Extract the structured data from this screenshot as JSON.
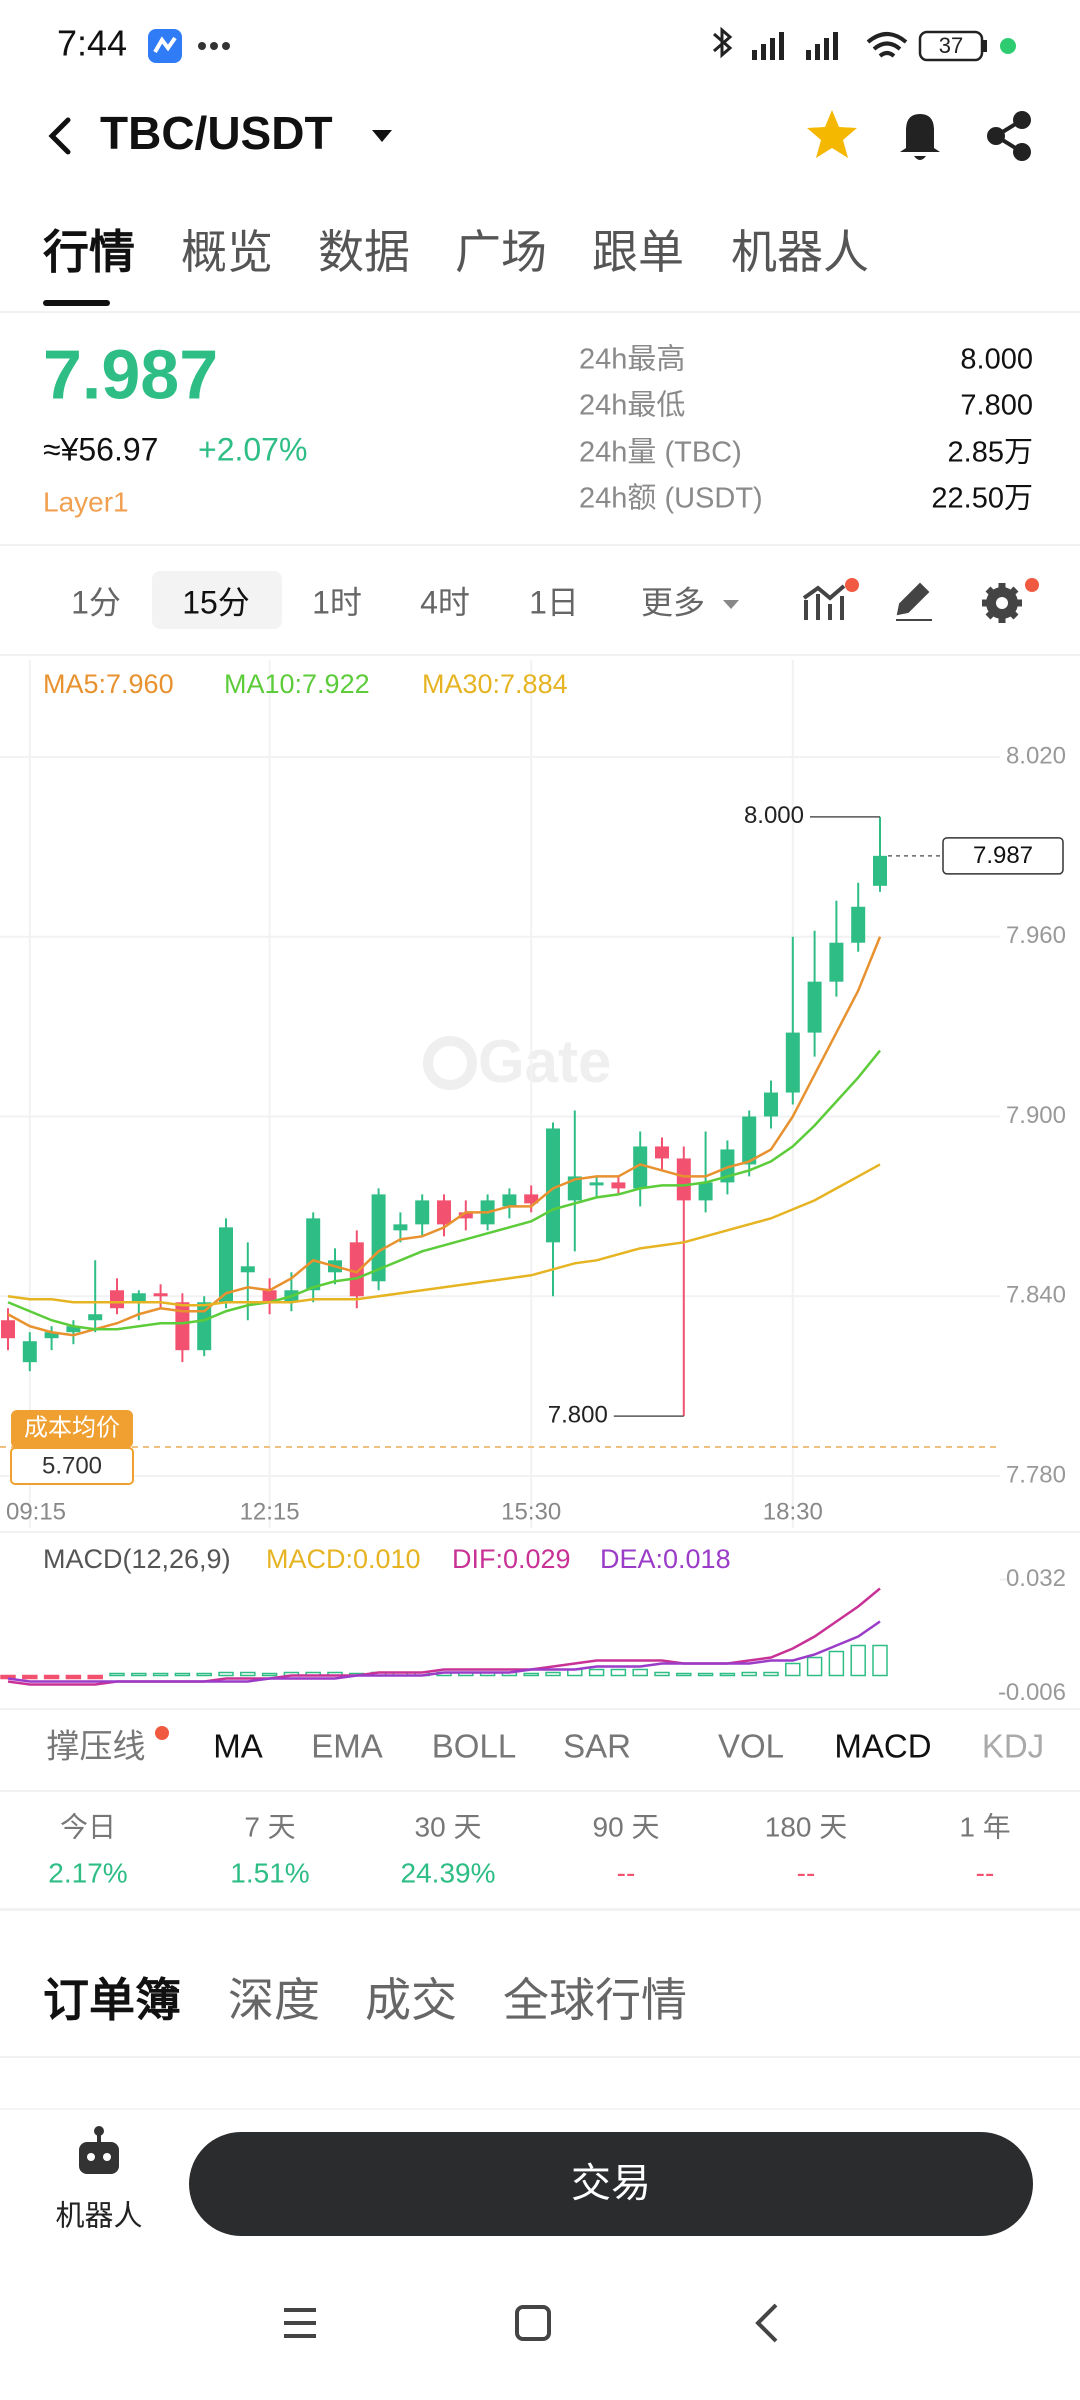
{
  "status_bar": {
    "time": "7:44",
    "battery": "37"
  },
  "header": {
    "pair": "TBC/USDT"
  },
  "tabs": [
    "行情",
    "概览",
    "数据",
    "广场",
    "跟单",
    "机器人"
  ],
  "ticker": {
    "price": "7.987",
    "cny": "≈¥56.97",
    "change": "+2.07%",
    "tag": "Layer1",
    "stats": [
      {
        "label": "24h最高",
        "value": "8.000"
      },
      {
        "label": "24h最低",
        "value": "7.800"
      },
      {
        "label": "24h量 (TBC)",
        "value": "2.85万"
      },
      {
        "label": "24h额 (USDT)",
        "value": "22.50万"
      }
    ]
  },
  "intervals": [
    "1分",
    "15分",
    "1时",
    "4时",
    "1日",
    "更多"
  ],
  "chart_data": [
    {
      "type": "candlestick",
      "categories": [
        null,
        "09:15",
        null,
        null,
        null,
        null,
        null,
        null,
        null,
        null,
        null,
        null,
        "12:15",
        null,
        null,
        null,
        null,
        null,
        null,
        null,
        null,
        null,
        null,
        null,
        "15:30",
        null,
        null,
        null,
        null,
        null,
        null,
        null,
        null,
        null,
        null,
        null,
        "18:30",
        null,
        null,
        null,
        null
      ],
      "open": [
        7.832,
        7.818,
        7.826,
        7.828,
        7.832,
        7.842,
        7.838,
        7.841,
        7.838,
        7.822,
        7.838,
        7.848,
        7.842,
        7.838,
        7.842,
        7.848,
        7.858,
        7.845,
        7.862,
        7.864,
        7.872,
        7.868,
        7.864,
        7.87,
        7.874,
        7.858,
        7.872,
        7.877,
        7.878,
        7.876,
        7.89,
        7.886,
        7.872,
        7.878,
        7.884,
        7.9,
        7.908,
        7.928,
        7.945,
        7.958,
        7.977
      ],
      "high": [
        7.836,
        7.828,
        7.83,
        7.832,
        7.852,
        7.846,
        7.842,
        7.844,
        7.841,
        7.84,
        7.866,
        7.858,
        7.846,
        7.848,
        7.868,
        7.856,
        7.862,
        7.876,
        7.868,
        7.874,
        7.874,
        7.872,
        7.874,
        7.876,
        7.877,
        7.898,
        7.902,
        7.88,
        7.88,
        7.895,
        7.893,
        7.89,
        7.895,
        7.892,
        7.902,
        7.912,
        7.96,
        7.962,
        7.972,
        7.978,
        8.0
      ],
      "low": [
        7.822,
        7.815,
        7.822,
        7.824,
        7.828,
        7.834,
        7.832,
        7.836,
        7.818,
        7.82,
        7.836,
        7.832,
        7.834,
        7.835,
        7.838,
        7.844,
        7.836,
        7.842,
        7.858,
        7.86,
        7.86,
        7.862,
        7.862,
        7.866,
        7.868,
        7.84,
        7.855,
        7.873,
        7.874,
        7.87,
        7.882,
        7.8,
        7.868,
        7.874,
        7.88,
        7.896,
        7.904,
        7.92,
        7.94,
        7.955,
        7.975
      ],
      "close": [
        7.826,
        7.825,
        7.828,
        7.83,
        7.834,
        7.836,
        7.841,
        7.84,
        7.822,
        7.838,
        7.863,
        7.85,
        7.838,
        7.842,
        7.866,
        7.852,
        7.84,
        7.874,
        7.864,
        7.872,
        7.864,
        7.866,
        7.872,
        7.874,
        7.871,
        7.896,
        7.88,
        7.878,
        7.876,
        7.89,
        7.886,
        7.872,
        7.878,
        7.889,
        7.9,
        7.908,
        7.928,
        7.945,
        7.958,
        7.97,
        7.987
      ],
      "up_color": "#2ebd85",
      "down_color": "#f2516f",
      "series": [
        {
          "name": "MA5:7.960",
          "color": "#e8912f",
          "values": [
            7.834,
            7.83,
            7.828,
            7.827,
            7.829,
            7.831,
            7.834,
            7.836,
            7.835,
            7.835,
            7.841,
            7.843,
            7.842,
            7.846,
            7.852,
            7.85,
            7.848,
            7.855,
            7.859,
            7.86,
            7.863,
            7.868,
            7.868,
            7.87,
            7.87,
            7.876,
            7.879,
            7.88,
            7.88,
            7.884,
            7.882,
            7.88,
            7.88,
            7.883,
            7.885,
            7.889,
            7.9,
            7.914,
            7.928,
            7.942,
            7.96
          ]
        },
        {
          "name": "MA10:7.922",
          "color": "#5ccc3a",
          "values": [
            7.838,
            7.835,
            7.832,
            7.83,
            7.829,
            7.829,
            7.83,
            7.831,
            7.831,
            7.832,
            7.835,
            7.837,
            7.838,
            7.84,
            7.843,
            7.845,
            7.846,
            7.849,
            7.852,
            7.855,
            7.857,
            7.859,
            7.861,
            7.863,
            7.865,
            7.869,
            7.871,
            7.873,
            7.874,
            7.876,
            7.877,
            7.877,
            7.878,
            7.88,
            7.882,
            7.885,
            7.89,
            7.897,
            7.905,
            7.913,
            7.922
          ]
        },
        {
          "name": "MA30:7.884",
          "color": "#e6b422",
          "values": [
            7.84,
            7.839,
            7.839,
            7.838,
            7.838,
            7.838,
            7.838,
            7.838,
            7.837,
            7.837,
            7.838,
            7.838,
            7.838,
            7.838,
            7.839,
            7.839,
            7.839,
            7.84,
            7.841,
            7.842,
            7.843,
            7.844,
            7.845,
            7.846,
            7.847,
            7.849,
            7.851,
            7.852,
            7.854,
            7.856,
            7.857,
            7.858,
            7.86,
            7.862,
            7.864,
            7.866,
            7.869,
            7.872,
            7.876,
            7.88,
            7.884
          ]
        }
      ],
      "ylim": [
        7.772,
        8.03
      ],
      "yticks": [
        {
          "value": 7.78,
          "label": "7.780"
        },
        {
          "value": 7.84,
          "label": "7.840"
        },
        {
          "value": 7.9,
          "label": "7.900"
        },
        {
          "value": 7.96,
          "label": "7.960"
        },
        {
          "value": 8.02,
          "label": "8.020"
        }
      ],
      "annotations": [
        {
          "value": 8,
          "label": "8.000"
        },
        {
          "value": 7.8,
          "label": "7.800"
        }
      ],
      "grid": true
    },
    {
      "type": "macd",
      "title": "MACD(12,26,9)",
      "down_color": "#f2516f",
      "series": [
        {
          "name": "MACD:0.010",
          "color": "#e6b422",
          "bar_color": "#2ebd85",
          "values": [
            -0.001,
            -0.001,
            -0.001,
            -0.001,
            -0.001,
            0,
            0,
            0,
            0,
            0,
            0.001,
            0.001,
            0,
            0.001,
            0.001,
            0.001,
            0,
            0.001,
            0.001,
            0.001,
            0.001,
            0.001,
            0.001,
            0.001,
            0,
            0.001,
            0.002,
            0.002,
            0.002,
            0.002,
            0.001,
            0,
            0,
            0,
            0.001,
            0.001,
            0.004,
            0.006,
            0.008,
            0.01,
            0.01
          ]
        },
        {
          "name": "DIF:0.029",
          "color": "#c83296",
          "values": [
            -0.002,
            -0.003,
            -0.003,
            -0.003,
            -0.003,
            -0.002,
            -0.002,
            -0.002,
            -0.002,
            -0.002,
            -0.001,
            -0.001,
            -0.001,
            0,
            0,
            0,
            0,
            0.001,
            0.001,
            0.001,
            0.002,
            0.002,
            0.002,
            0.002,
            0.002,
            0.003,
            0.004,
            0.005,
            0.005,
            0.005,
            0.005,
            0.004,
            0.004,
            0.004,
            0.005,
            0.006,
            0.009,
            0.013,
            0.018,
            0.023,
            0.029
          ]
        },
        {
          "name": "DEA:0.018",
          "color": "#9a3cc8",
          "values": [
            -0.001,
            -0.002,
            -0.002,
            -0.002,
            -0.002,
            -0.002,
            -0.002,
            -0.002,
            -0.002,
            -0.002,
            -0.002,
            -0.002,
            -0.001,
            -0.001,
            -0.001,
            -0.001,
            0,
            0,
            0,
            0,
            0.001,
            0.001,
            0.001,
            0.001,
            0.002,
            0.002,
            0.002,
            0.003,
            0.003,
            0.003,
            0.004,
            0.004,
            0.004,
            0.004,
            0.004,
            0.005,
            0.005,
            0.007,
            0.01,
            0.013,
            0.018
          ]
        }
      ],
      "ylim": [
        -0.0075,
        0.0335
      ],
      "yticks": [
        -0.006,
        0.032
      ]
    }
  ],
  "cost": {
    "label": "成本均价",
    "value": "5.700"
  },
  "watermark": "Gate",
  "indicators": [
    "撑压线",
    "MA",
    "EMA",
    "BOLL",
    "SAR",
    "VOL",
    "MACD",
    "KDJ"
  ],
  "returns": [
    {
      "period": "今日",
      "value": "2.17%"
    },
    {
      "period": "7 天",
      "value": "1.51%"
    },
    {
      "period": "30 天",
      "value": "24.39%"
    },
    {
      "period": "90 天",
      "value": "--"
    },
    {
      "period": "180 天",
      "value": "--"
    },
    {
      "period": "1 年",
      "value": "--"
    }
  ],
  "book_tabs": [
    "订单簿",
    "深度",
    "成交",
    "全球行情"
  ],
  "bottom": {
    "robot": "机器人",
    "trade": "交易"
  }
}
